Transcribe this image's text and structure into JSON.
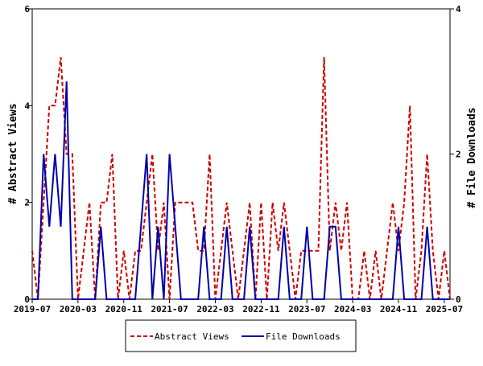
{
  "chart_data": {
    "type": "line",
    "title": "",
    "xlabel": "",
    "ylabel": "# Abstract Views",
    "y2label": "# File Downloads",
    "grid": false,
    "legend_position": "bottom",
    "x_ticks": [
      "2019-07",
      "2020-03",
      "2020-11",
      "2021-07",
      "2022-03",
      "2022-11",
      "2023-07",
      "2024-03",
      "2024-11",
      "2025-07"
    ],
    "ylim": [
      0,
      6
    ],
    "y_ticks": [
      0,
      2,
      4,
      6
    ],
    "y2lim": [
      0,
      4
    ],
    "y2_ticks": [
      0,
      2,
      4
    ],
    "x": [
      "2019-07",
      "2019-08",
      "2019-09",
      "2019-10",
      "2019-11",
      "2019-12",
      "2020-01",
      "2020-02",
      "2020-03",
      "2020-04",
      "2020-05",
      "2020-06",
      "2020-07",
      "2020-08",
      "2020-09",
      "2020-10",
      "2020-11",
      "2020-12",
      "2021-01",
      "2021-02",
      "2021-03",
      "2021-04",
      "2021-05",
      "2021-06",
      "2021-07",
      "2021-08",
      "2021-09",
      "2021-10",
      "2021-11",
      "2021-12",
      "2022-01",
      "2022-02",
      "2022-03",
      "2022-04",
      "2022-05",
      "2022-06",
      "2022-07",
      "2022-08",
      "2022-09",
      "2022-10",
      "2022-11",
      "2022-12",
      "2023-01",
      "2023-02",
      "2023-03",
      "2023-04",
      "2023-05",
      "2023-06",
      "2023-07",
      "2023-08",
      "2023-09",
      "2023-10",
      "2023-11",
      "2023-12",
      "2024-01",
      "2024-02",
      "2024-03",
      "2024-04",
      "2024-05",
      "2024-06",
      "2024-07",
      "2024-08",
      "2024-09",
      "2024-10",
      "2024-11",
      "2024-12",
      "2025-01",
      "2025-02",
      "2025-03",
      "2025-04",
      "2025-05",
      "2025-06",
      "2025-07",
      "2025-08"
    ],
    "series": [
      {
        "name": "Abstract Views",
        "axis": "left",
        "color": "#cc0000",
        "style": "dashed",
        "values": [
          1,
          0,
          2,
          4,
          4,
          5,
          3,
          3,
          0,
          1,
          2,
          0,
          2,
          2,
          3,
          0,
          1,
          0,
          1,
          1,
          2,
          3,
          1,
          2,
          0,
          2,
          2,
          2,
          2,
          1,
          1,
          3,
          0,
          1,
          2,
          1,
          0,
          1,
          2,
          0,
          2,
          0,
          2,
          1,
          2,
          1,
          0,
          1,
          1,
          1,
          1,
          5,
          1,
          2,
          1,
          2,
          0,
          0,
          1,
          0,
          1,
          0,
          1,
          2,
          1,
          2,
          4,
          0,
          1,
          3,
          1,
          0,
          1,
          0
        ]
      },
      {
        "name": "File Downloads",
        "axis": "right",
        "color": "#0000aa",
        "style": "solid",
        "values": [
          0,
          0,
          2,
          1,
          2,
          1,
          3,
          0,
          0,
          0,
          0,
          0,
          1,
          0,
          0,
          0,
          0,
          0,
          0,
          1,
          2,
          0,
          1,
          0,
          2,
          1,
          0,
          0,
          0,
          0,
          1,
          0,
          0,
          0,
          1,
          0,
          0,
          0,
          1,
          0,
          0,
          0,
          0,
          0,
          1,
          0,
          0,
          0,
          1,
          0,
          0,
          0,
          1,
          1,
          0,
          0,
          0,
          0,
          0,
          0,
          0,
          0,
          0,
          0,
          1,
          0,
          0,
          0,
          0,
          1,
          0,
          0,
          0,
          0
        ]
      }
    ]
  }
}
